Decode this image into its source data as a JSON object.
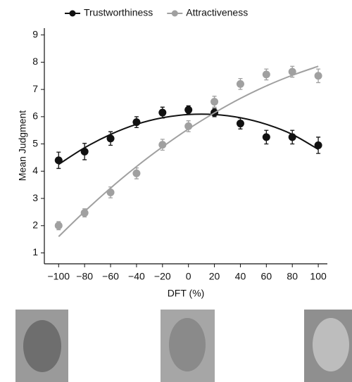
{
  "chart_data": {
    "type": "scatter",
    "x_label": "DFT (%)",
    "y_label": "Mean Judgment",
    "x": [
      -100,
      -80,
      -60,
      -40,
      -20,
      0,
      20,
      40,
      60,
      80,
      100
    ],
    "series": [
      {
        "name": "Trustworthiness",
        "color": "#111111",
        "values": [
          4.4,
          4.72,
          5.2,
          5.8,
          6.15,
          6.25,
          6.15,
          5.75,
          5.25,
          5.25,
          4.95
        ],
        "errors": [
          0.3,
          0.3,
          0.25,
          0.2,
          0.2,
          0.15,
          0.15,
          0.2,
          0.25,
          0.25,
          0.3
        ],
        "fit": [
          4.25,
          4.86,
          5.35,
          5.72,
          5.96,
          6.08,
          6.08,
          5.96,
          5.72,
          5.35,
          4.8
        ]
      },
      {
        "name": "Attractiveness",
        "color": "#a0a0a0",
        "values": [
          2.0,
          2.47,
          3.22,
          3.92,
          4.97,
          5.65,
          6.55,
          7.2,
          7.55,
          7.65,
          7.5
        ],
        "errors": [
          0.15,
          0.15,
          0.2,
          0.2,
          0.2,
          0.2,
          0.2,
          0.2,
          0.2,
          0.2,
          0.25
        ],
        "fit": [
          1.6,
          2.52,
          3.38,
          4.17,
          4.89,
          5.55,
          6.14,
          6.67,
          7.13,
          7.52,
          7.85
        ]
      }
    ],
    "xlim": [
      -111,
      107
    ],
    "ylim": [
      0.6,
      9.25
    ],
    "xticks": [
      {
        "value": -100,
        "label": "−100"
      },
      {
        "value": -80,
        "label": "−80"
      },
      {
        "value": -60,
        "label": "−60"
      },
      {
        "value": -40,
        "label": "−40"
      },
      {
        "value": -20,
        "label": "−20"
      },
      0,
      20,
      40,
      60,
      80,
      100
    ],
    "yticks": [
      1,
      2,
      3,
      4,
      5,
      6,
      7,
      8,
      9
    ],
    "legend": "top"
  }
}
